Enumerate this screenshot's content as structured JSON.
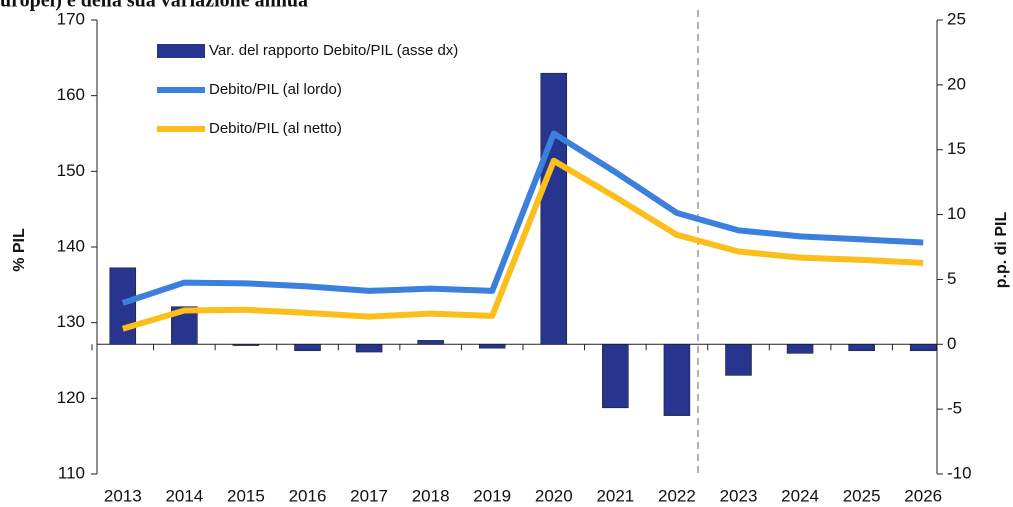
{
  "chart_data": {
    "type": "bar_line",
    "title": "uropei) e della sua variazione annua",
    "y_label": "% PIL",
    "y2_label": "p.p. di PIL",
    "categories": [
      "2013",
      "2014",
      "2015",
      "2016",
      "2017",
      "2018",
      "2019",
      "2020",
      "2021",
      "2022",
      "2023",
      "2024",
      "2025",
      "2026"
    ],
    "ylim": [
      110,
      170
    ],
    "yticks": [
      110,
      120,
      130,
      140,
      150,
      160,
      170
    ],
    "y2lim": [
      -10,
      25
    ],
    "y2ticks": [
      -10,
      -5,
      0,
      5,
      10,
      15,
      20,
      25
    ],
    "legend": "top-left",
    "series": [
      {
        "name": "Var. del rapporto Debito/PIL (asse dx)",
        "type": "bar",
        "axis": "y2",
        "color": "#27358f",
        "values": [
          5.9,
          2.9,
          -0.1,
          -0.5,
          -0.6,
          0.3,
          -0.3,
          20.9,
          -4.9,
          -5.5,
          -2.4,
          -0.7,
          -0.5,
          -0.5
        ]
      },
      {
        "name": "Debito/PIL (al lordo)",
        "type": "line",
        "axis": "y",
        "color": "#3b80dd",
        "values": [
          132.6,
          135.3,
          135.2,
          134.8,
          134.2,
          134.5,
          134.2,
          155.0,
          149.9,
          144.5,
          142.2,
          141.4,
          141.0,
          140.6
        ]
      },
      {
        "name": "Debito/PIL (al netto)",
        "type": "line",
        "axis": "y",
        "color": "#fbbe1a",
        "values": [
          129.2,
          131.6,
          131.7,
          131.3,
          130.8,
          131.2,
          130.9,
          151.4,
          146.6,
          141.6,
          139.4,
          138.6,
          138.3,
          137.9
        ]
      }
    ]
  }
}
